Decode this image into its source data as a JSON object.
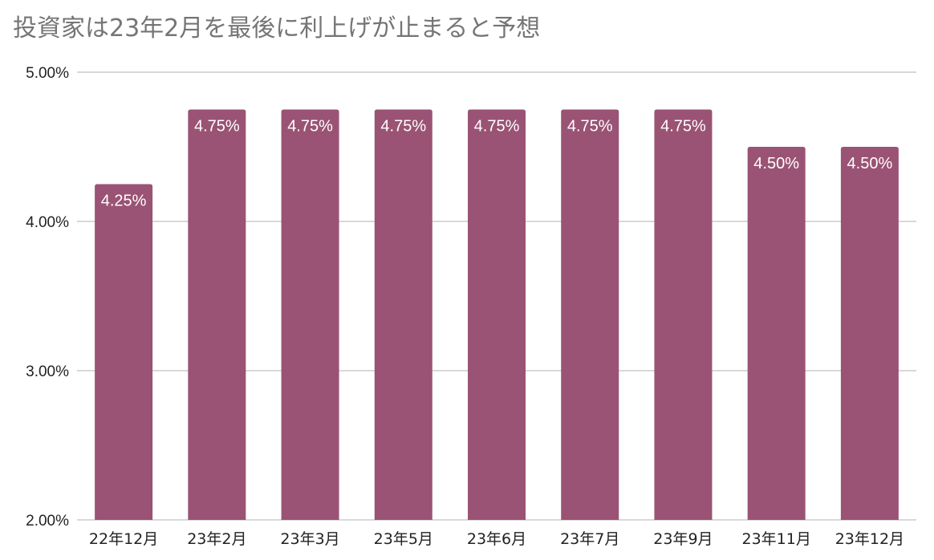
{
  "chart_data": {
    "type": "bar",
    "title": "投資家は23年2月を最後に利上げが止まると予想",
    "xlabel": "",
    "ylabel": "",
    "categories": [
      "22年12月",
      "23年2月",
      "23年3月",
      "23年5月",
      "23年6月",
      "23年7月",
      "23年9月",
      "23年11月",
      "23年12月"
    ],
    "values": [
      4.25,
      4.75,
      4.75,
      4.75,
      4.75,
      4.75,
      4.75,
      4.5,
      4.5
    ],
    "data_labels": [
      "4.25%",
      "4.75%",
      "4.75%",
      "4.75%",
      "4.75%",
      "4.75%",
      "4.75%",
      "4.50%",
      "4.50%"
    ],
    "ylim": [
      2.0,
      5.0
    ],
    "y_ticks": [
      2.0,
      3.0,
      4.0,
      5.0
    ],
    "y_tick_labels": [
      "2.00%",
      "3.00%",
      "4.00%",
      "5.00%"
    ],
    "grid": true,
    "legend": "none",
    "bar_color": "#9a5374",
    "grid_color": "#cccccc",
    "title_color": "#757575"
  }
}
